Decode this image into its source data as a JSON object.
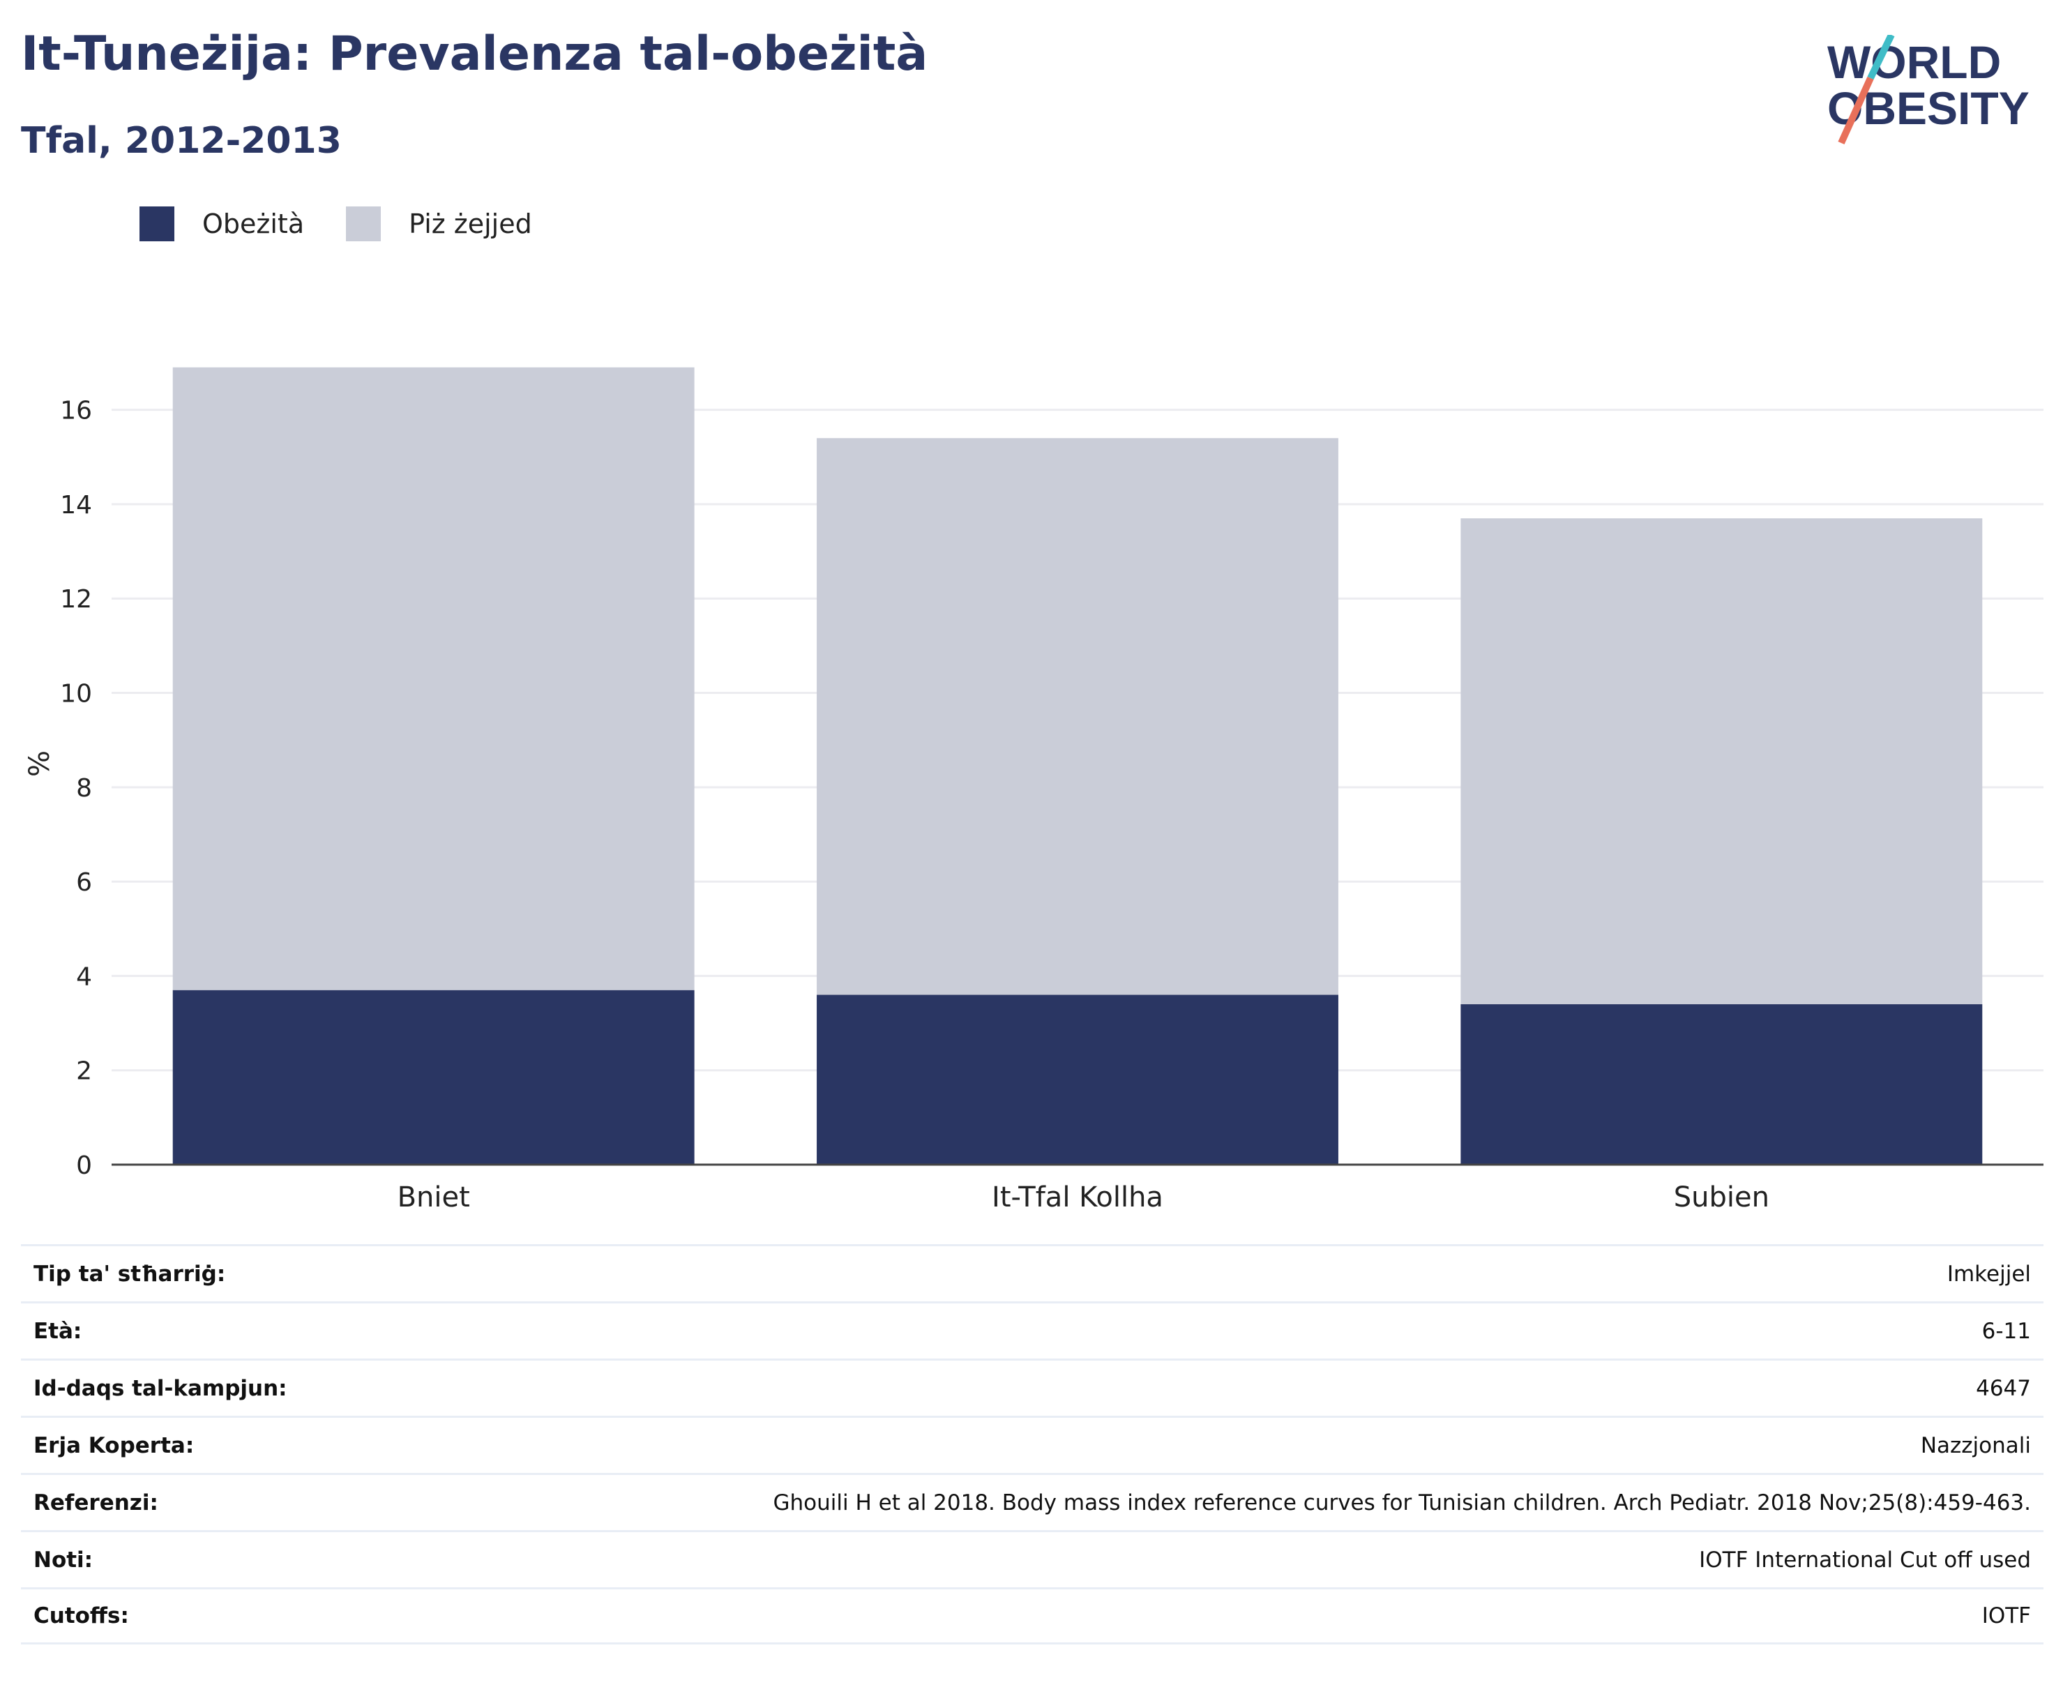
{
  "header": {
    "title": "It-Tuneżija: Prevalenza tal-obeżità",
    "subtitle": "Tfal, 2012-2013"
  },
  "logo": {
    "line1": "WORLD",
    "line2": "OBESITY",
    "colors": {
      "text": "#2a3663",
      "slash_top": "#3fbcc7",
      "slash_bottom": "#e8705a"
    }
  },
  "legend": [
    {
      "label": "Obeżità",
      "color": "#2a3663"
    },
    {
      "label": "Piż żejjed",
      "color": "#cacdd8"
    }
  ],
  "chart_data": {
    "type": "bar",
    "stacked": true,
    "categories": [
      "Bniet",
      "It-Tfal Kollha",
      "Subien"
    ],
    "series": [
      {
        "name": "Obeżità",
        "values": [
          3.7,
          3.6,
          3.4
        ],
        "color": "#2a3663"
      },
      {
        "name": "Piż żejjed",
        "values": [
          13.2,
          11.8,
          10.3
        ],
        "color": "#cacdd8"
      }
    ],
    "ylabel": "%",
    "ylim": [
      0,
      17
    ],
    "yticks": [
      0,
      2,
      4,
      6,
      8,
      10,
      12,
      14,
      16
    ],
    "grid": true
  },
  "meta": [
    {
      "key": "Tip ta' stħarriġ:",
      "value": "Imkejjel"
    },
    {
      "key": "Età:",
      "value": "6-11"
    },
    {
      "key": "Id-daqs tal-kampjun:",
      "value": "4647"
    },
    {
      "key": "Erja Koperta:",
      "value": "Nazzjonali"
    },
    {
      "key": "Referenzi:",
      "value": "Ghouili H et al 2018. Body mass index reference curves for Tunisian children. Arch Pediatr. 2018 Nov;25(8):459-463."
    },
    {
      "key": "Noti:",
      "value": "IOTF International Cut off used"
    },
    {
      "key": "Cutoffs:",
      "value": "IOTF"
    }
  ]
}
